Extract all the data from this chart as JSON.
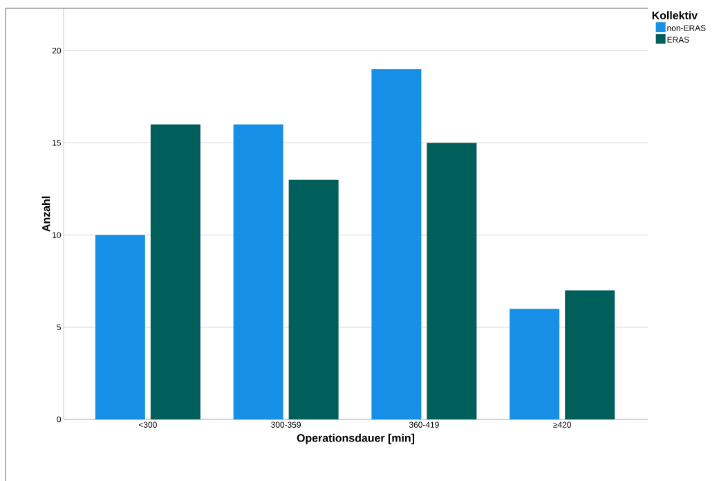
{
  "chart_data": {
    "type": "bar",
    "xlabel": "Operationsdauer [min]",
    "ylabel": "Anzahl",
    "legend_title": "Kollektiv",
    "categories": [
      "<300",
      "300-359",
      "360-419",
      "≥420"
    ],
    "series": [
      {
        "name": "non-ERAS",
        "color": "#1690e6",
        "values": [
          10,
          16,
          19,
          6
        ]
      },
      {
        "name": "ERAS",
        "color": "#005f5a",
        "values": [
          16,
          13,
          15,
          7
        ]
      }
    ],
    "ylim": [
      0,
      22.3
    ],
    "yticks": [
      0,
      5,
      10,
      15,
      20
    ],
    "grid": "y",
    "legend": "top right"
  }
}
